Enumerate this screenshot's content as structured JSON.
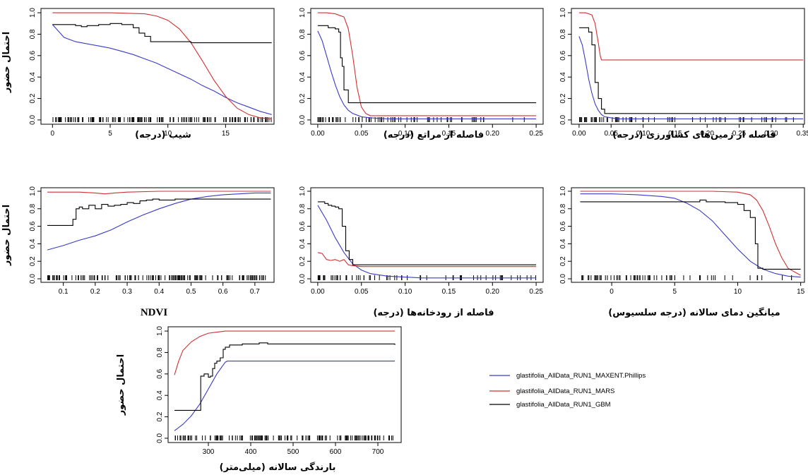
{
  "legend": {
    "entries": [
      {
        "label": "glastifolia_AllData_RUN1_MAXENT.Phillips",
        "color": "#3a3ac8"
      },
      {
        "label": "glastifolia_AllData_RUN1_MARS",
        "color": "#d03030"
      },
      {
        "label": "glastifolia_AllData_RUN1_GBM",
        "color": "#000000"
      }
    ]
  },
  "chart_data": [
    {
      "type": "line",
      "xlabel": "شیب (درجه)",
      "ylabel": "احتمال حضور",
      "xlim": [
        -1,
        19.2
      ],
      "ylim": [
        -0.04,
        1.04
      ],
      "xticks": [
        0,
        5,
        10,
        15
      ],
      "yticks": [
        0.0,
        0.2,
        0.4,
        0.6,
        0.8,
        1.0
      ],
      "rug": "dense",
      "series": [
        {
          "color": "#3a3ac8",
          "x": [
            0,
            1,
            2,
            3,
            4,
            5,
            6,
            7,
            8,
            9,
            10,
            11,
            12,
            13,
            14,
            15,
            16,
            17,
            18,
            19
          ],
          "y": [
            0.89,
            0.77,
            0.73,
            0.71,
            0.69,
            0.67,
            0.64,
            0.61,
            0.57,
            0.53,
            0.48,
            0.43,
            0.38,
            0.32,
            0.27,
            0.21,
            0.16,
            0.12,
            0.08,
            0.05
          ]
        },
        {
          "color": "#d03030",
          "x": [
            0,
            5,
            8,
            9,
            10,
            11,
            12,
            13,
            14,
            15,
            16,
            17,
            18,
            19
          ],
          "y": [
            1.0,
            1.0,
            0.99,
            0.97,
            0.93,
            0.85,
            0.72,
            0.55,
            0.37,
            0.22,
            0.11,
            0.05,
            0.02,
            0.01
          ]
        },
        {
          "color": "#000000",
          "step": true,
          "x": [
            0,
            1,
            2,
            2.5,
            3,
            4,
            5,
            6,
            7,
            7.5,
            8,
            8.5,
            9,
            10,
            12,
            19
          ],
          "y": [
            0.89,
            0.89,
            0.88,
            0.87,
            0.88,
            0.89,
            0.9,
            0.89,
            0.86,
            0.81,
            0.78,
            0.73,
            0.73,
            0.73,
            0.72,
            0.72
          ]
        }
      ]
    },
    {
      "type": "line",
      "xlabel": "فاصله از مراتع (درجه)",
      "ylabel": "",
      "xlim": [
        -0.008,
        0.258
      ],
      "ylim": [
        -0.04,
        1.04
      ],
      "xticks": [
        0.0,
        0.05,
        0.1,
        0.15,
        0.2,
        0.25
      ],
      "yticks": [
        0.0,
        0.2,
        0.4,
        0.6,
        0.8,
        1.0
      ],
      "rug": "sparse",
      "series": [
        {
          "color": "#3a3ac8",
          "x": [
            0,
            0.005,
            0.01,
            0.015,
            0.02,
            0.025,
            0.03,
            0.035,
            0.04,
            0.05,
            0.06,
            0.08,
            0.25
          ],
          "y": [
            0.83,
            0.74,
            0.6,
            0.46,
            0.33,
            0.22,
            0.14,
            0.09,
            0.06,
            0.03,
            0.02,
            0.01,
            0.01
          ]
        },
        {
          "color": "#d03030",
          "x": [
            0,
            0.01,
            0.02,
            0.03,
            0.035,
            0.04,
            0.045,
            0.05,
            0.055,
            0.06,
            0.25
          ],
          "y": [
            1.0,
            1.0,
            0.99,
            0.96,
            0.85,
            0.6,
            0.3,
            0.12,
            0.06,
            0.04,
            0.04
          ]
        },
        {
          "color": "#000000",
          "step": true,
          "x": [
            0,
            0.008,
            0.012,
            0.02,
            0.024,
            0.026,
            0.028,
            0.03,
            0.035,
            0.25
          ],
          "y": [
            0.88,
            0.88,
            0.86,
            0.85,
            0.82,
            0.58,
            0.5,
            0.28,
            0.16,
            0.16
          ]
        }
      ]
    },
    {
      "type": "line",
      "xlabel": "فاصله از زمین‌های کشاورزی (درجه)",
      "ylabel": "",
      "xlim": [
        -0.012,
        0.352
      ],
      "ylim": [
        -0.04,
        1.04
      ],
      "xticks": [
        0.0,
        0.05,
        0.1,
        0.15,
        0.2,
        0.25,
        0.3,
        0.35
      ],
      "yticks": [
        0.0,
        0.2,
        0.4,
        0.6,
        0.8,
        1.0
      ],
      "rug": "sparse",
      "series": [
        {
          "color": "#3a3ac8",
          "x": [
            0,
            0.005,
            0.01,
            0.015,
            0.02,
            0.025,
            0.03,
            0.035,
            0.04,
            0.05,
            0.06,
            0.08,
            0.35
          ],
          "y": [
            0.78,
            0.7,
            0.55,
            0.38,
            0.25,
            0.15,
            0.09,
            0.05,
            0.03,
            0.02,
            0.01,
            0.01,
            0.01
          ]
        },
        {
          "color": "#d03030",
          "x": [
            0,
            0.01,
            0.02,
            0.025,
            0.03,
            0.033,
            0.035,
            0.35
          ],
          "y": [
            1.0,
            1.0,
            0.98,
            0.9,
            0.72,
            0.6,
            0.56,
            0.56
          ]
        },
        {
          "color": "#000000",
          "step": true,
          "x": [
            0,
            0.01,
            0.015,
            0.02,
            0.025,
            0.03,
            0.035,
            0.04,
            0.35
          ],
          "y": [
            0.86,
            0.86,
            0.82,
            0.7,
            0.35,
            0.2,
            0.1,
            0.06,
            0.06
          ]
        }
      ]
    },
    {
      "type": "line",
      "xlabel": "NDVI",
      "ylabel": "احتمال حضور",
      "xlim": [
        0.03,
        0.76
      ],
      "ylim": [
        -0.04,
        1.04
      ],
      "xticks": [
        0.1,
        0.2,
        0.3,
        0.4,
        0.5,
        0.6,
        0.7
      ],
      "yticks": [
        0.0,
        0.2,
        0.4,
        0.6,
        0.8,
        1.0
      ],
      "rug": "dense",
      "series": [
        {
          "color": "#3a3ac8",
          "x": [
            0.05,
            0.1,
            0.15,
            0.2,
            0.25,
            0.3,
            0.35,
            0.4,
            0.45,
            0.5,
            0.55,
            0.6,
            0.65,
            0.7,
            0.75
          ],
          "y": [
            0.33,
            0.38,
            0.44,
            0.49,
            0.56,
            0.65,
            0.73,
            0.8,
            0.86,
            0.91,
            0.94,
            0.96,
            0.97,
            0.98,
            0.98
          ]
        },
        {
          "color": "#d03030",
          "x": [
            0.05,
            0.15,
            0.2,
            0.23,
            0.26,
            0.3,
            0.4,
            0.5,
            0.75
          ],
          "y": [
            0.99,
            0.99,
            0.98,
            0.97,
            0.98,
            0.99,
            1.0,
            1.0,
            1.0
          ]
        },
        {
          "color": "#000000",
          "step": true,
          "x": [
            0.05,
            0.12,
            0.13,
            0.14,
            0.15,
            0.16,
            0.18,
            0.2,
            0.22,
            0.24,
            0.26,
            0.28,
            0.3,
            0.32,
            0.34,
            0.36,
            0.38,
            0.4,
            0.45,
            0.5,
            0.75
          ],
          "y": [
            0.61,
            0.61,
            0.68,
            0.8,
            0.82,
            0.8,
            0.84,
            0.8,
            0.85,
            0.83,
            0.84,
            0.85,
            0.87,
            0.86,
            0.89,
            0.9,
            0.91,
            0.9,
            0.91,
            0.91,
            0.91
          ]
        }
      ]
    },
    {
      "type": "line",
      "xlabel": "فاصله از رودخانه‌ها (درجه)",
      "ylabel": "",
      "xlim": [
        -0.008,
        0.258
      ],
      "ylim": [
        -0.04,
        1.04
      ],
      "xticks": [
        0.0,
        0.05,
        0.1,
        0.15,
        0.2,
        0.25
      ],
      "yticks": [
        0.0,
        0.2,
        0.4,
        0.6,
        0.8,
        1.0
      ],
      "rug": "sparse",
      "series": [
        {
          "color": "#3a3ac8",
          "x": [
            0,
            0.01,
            0.02,
            0.03,
            0.04,
            0.05,
            0.06,
            0.08,
            0.1,
            0.12,
            0.25
          ],
          "y": [
            0.84,
            0.67,
            0.47,
            0.3,
            0.17,
            0.1,
            0.06,
            0.03,
            0.02,
            0.01,
            0.01
          ]
        },
        {
          "color": "#d03030",
          "x": [
            0,
            0.005,
            0.01,
            0.015,
            0.02,
            0.025,
            0.03,
            0.035,
            0.04,
            0.05,
            0.25
          ],
          "y": [
            0.3,
            0.29,
            0.22,
            0.21,
            0.22,
            0.2,
            0.22,
            0.16,
            0.15,
            0.14,
            0.14
          ]
        },
        {
          "color": "#000000",
          "step": true,
          "x": [
            0,
            0.008,
            0.012,
            0.016,
            0.02,
            0.024,
            0.028,
            0.032,
            0.036,
            0.04,
            0.25
          ],
          "y": [
            0.88,
            0.86,
            0.84,
            0.83,
            0.82,
            0.8,
            0.6,
            0.32,
            0.22,
            0.16,
            0.16
          ]
        }
      ]
    },
    {
      "type": "line",
      "xlabel": "میانگین دمای سالانه (درجه سلسیوس)",
      "ylabel": "",
      "xlim": [
        -3.2,
        15.3
      ],
      "ylim": [
        -0.04,
        1.04
      ],
      "xticks": [
        0,
        5,
        10,
        15
      ],
      "yticks": [
        0.0,
        0.2,
        0.4,
        0.6,
        0.8,
        1.0
      ],
      "rug": "sparse",
      "series": [
        {
          "color": "#3a3ac8",
          "x": [
            -2.5,
            0,
            2,
            4,
            5,
            6,
            7,
            8,
            9,
            10,
            11,
            12,
            13,
            14,
            15
          ],
          "y": [
            0.97,
            0.97,
            0.96,
            0.94,
            0.92,
            0.86,
            0.78,
            0.66,
            0.5,
            0.34,
            0.2,
            0.11,
            0.06,
            0.03,
            0.02
          ]
        },
        {
          "color": "#d03030",
          "x": [
            -2.5,
            5,
            8,
            10,
            11,
            11.5,
            12,
            12.5,
            13,
            13.5,
            14,
            15
          ],
          "y": [
            1.0,
            1.0,
            1.0,
            0.99,
            0.96,
            0.9,
            0.78,
            0.6,
            0.4,
            0.24,
            0.12,
            0.04
          ]
        },
        {
          "color": "#000000",
          "step": true,
          "x": [
            -2.5,
            6,
            7,
            7.5,
            8,
            9,
            10,
            10.5,
            11,
            11.4,
            11.6,
            12,
            13,
            15
          ],
          "y": [
            0.88,
            0.88,
            0.9,
            0.88,
            0.88,
            0.87,
            0.85,
            0.78,
            0.7,
            0.4,
            0.12,
            0.11,
            0.11,
            0.11
          ]
        }
      ]
    },
    {
      "type": "line",
      "xlabel": "بارندگی سالانه (میلی‌متر)",
      "ylabel": "احتمال حضور",
      "xlim": [
        205,
        755
      ],
      "ylim": [
        -0.04,
        1.04
      ],
      "xticks": [
        300,
        400,
        500,
        600,
        700
      ],
      "yticks": [
        0.0,
        0.2,
        0.4,
        0.6,
        0.8,
        1.0
      ],
      "rug": "dense",
      "series": [
        {
          "color": "#3a3ac8",
          "x": [
            220,
            240,
            260,
            280,
            300,
            320,
            340,
            345,
            740
          ],
          "y": [
            0.07,
            0.13,
            0.21,
            0.32,
            0.46,
            0.6,
            0.71,
            0.72,
            0.72
          ]
        },
        {
          "color": "#d03030",
          "x": [
            220,
            230,
            240,
            260,
            280,
            300,
            320,
            340,
            360,
            740
          ],
          "y": [
            0.59,
            0.72,
            0.82,
            0.9,
            0.95,
            0.98,
            0.99,
            1.0,
            1.0,
            1.0
          ]
        },
        {
          "color": "#000000",
          "step": true,
          "x": [
            220,
            278,
            282,
            290,
            300,
            305,
            310,
            315,
            320,
            328,
            335,
            340,
            350,
            380,
            420,
            440,
            740
          ],
          "y": [
            0.26,
            0.26,
            0.58,
            0.6,
            0.57,
            0.58,
            0.65,
            0.7,
            0.72,
            0.75,
            0.83,
            0.85,
            0.87,
            0.88,
            0.89,
            0.88,
            0.87
          ]
        }
      ]
    }
  ]
}
